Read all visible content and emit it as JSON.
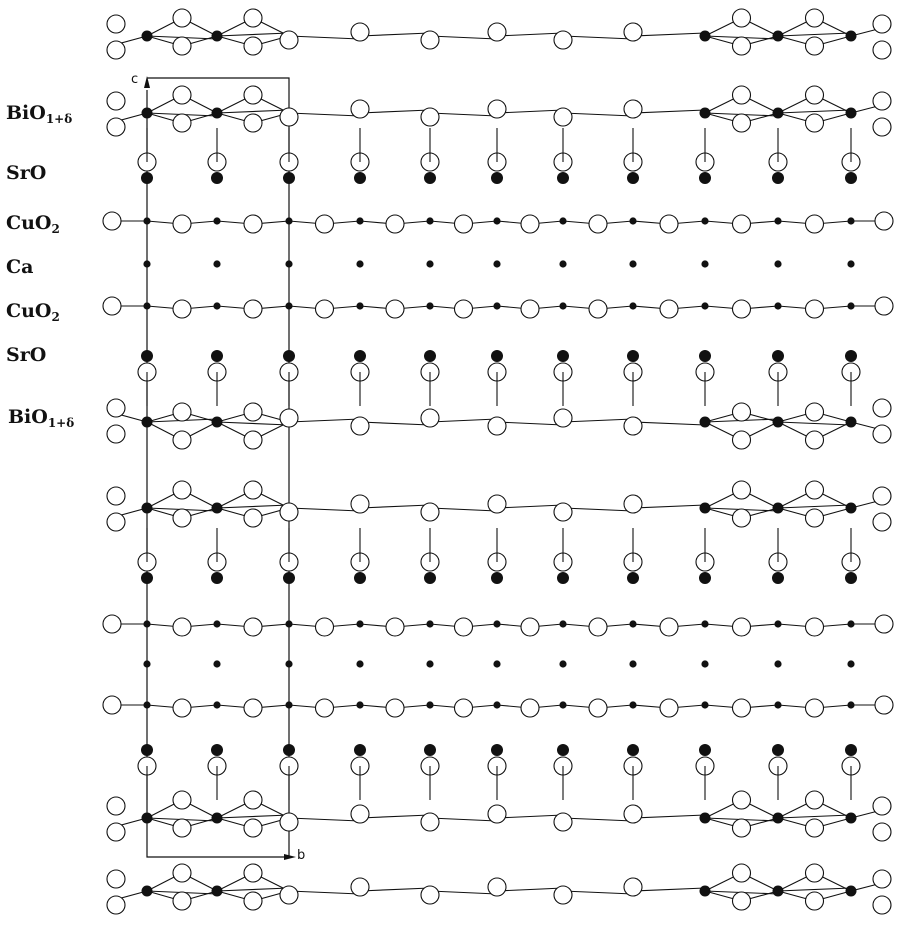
{
  "layer_labels": [
    {
      "base": "BiO",
      "sub": "1+δ"
    },
    {
      "base": "SrO",
      "sub": ""
    },
    {
      "base": "CuO",
      "sub": "2"
    },
    {
      "base": "Ca",
      "sub": ""
    },
    {
      "base": "CuO",
      "sub": "2"
    },
    {
      "base": "SrO",
      "sub": ""
    },
    {
      "base": "BiO",
      "sub": "1+δ"
    }
  ],
  "axes": {
    "c": "c",
    "b": "b"
  },
  "colors": {
    "ink": "#111111",
    "open_atom_fill": "#ffffff"
  }
}
